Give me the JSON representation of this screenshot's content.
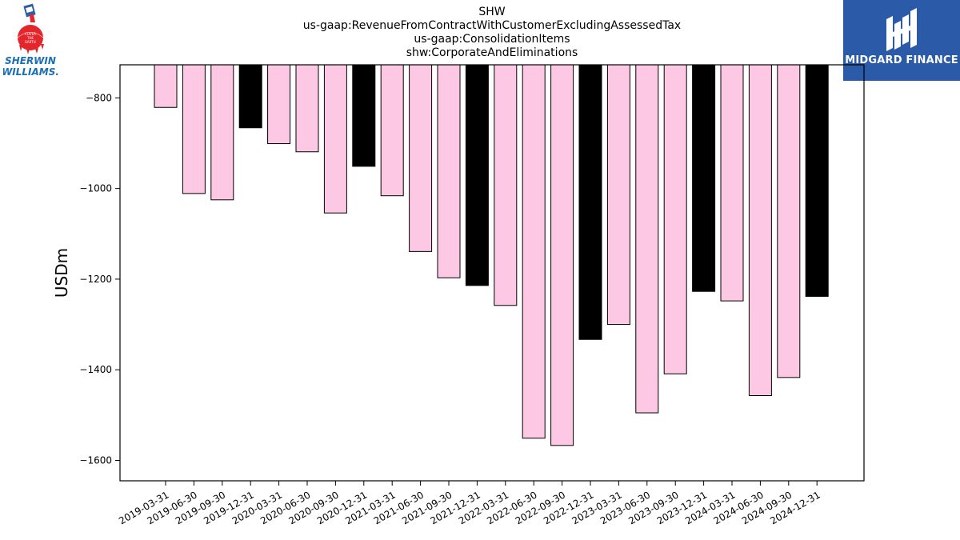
{
  "header": {
    "title_lines": [
      "SHW",
      "us-gaap:RevenueFromContractWithCustomerExcludingAssessedTax",
      "us-gaap:ConsolidationItems",
      "shw:CorporateAndEliminations"
    ]
  },
  "logos": {
    "left": {
      "name": "Sherwin-Williams",
      "wordmark_line1": "SHERWIN",
      "wordmark_line2": "WILLIAMS.",
      "globe_text": "COVER THE EARTH",
      "color": "#1a6fb5"
    },
    "right": {
      "name": "Midgard Finance",
      "wordmark": "MIDGARD FINANCE",
      "background": "#2a5aa8"
    }
  },
  "chart_data": {
    "type": "bar",
    "title": "SHW\nus-gaap:RevenueFromContractWithCustomerExcludingAssessedTax\nus-gaap:ConsolidationItems\nshw:CorporateAndEliminations",
    "xlabel": "",
    "ylabel": "USDm",
    "ylim": [
      -1645,
      -727
    ],
    "yticks": [
      -800,
      -1000,
      -1200,
      -1400,
      -1600
    ],
    "grid": false,
    "categories": [
      "2019-03-31",
      "2019-06-30",
      "2019-09-30",
      "2019-12-31",
      "2020-03-31",
      "2020-06-30",
      "2020-09-30",
      "2020-12-31",
      "2021-03-31",
      "2021-06-30",
      "2021-09-30",
      "2021-12-31",
      "2022-03-31",
      "2022-06-30",
      "2022-09-30",
      "2022-12-31",
      "2023-03-31",
      "2023-06-30",
      "2023-09-30",
      "2023-12-31",
      "2024-03-31",
      "2024-06-30",
      "2024-09-30",
      "2024-12-31"
    ],
    "values": [
      -821,
      -1011,
      -1025,
      -866,
      -901,
      -919,
      -1054,
      -951,
      -1016,
      -1139,
      -1197,
      -1214,
      -1258,
      -1551,
      -1567,
      -1333,
      -1300,
      -1495,
      -1409,
      -1227,
      -1248,
      -1457,
      -1417,
      -1238
    ],
    "colors": {
      "quarter": "#fcc8e4",
      "year_end": "#000000",
      "edge": "#000000"
    },
    "bar_colors": [
      "quarter",
      "quarter",
      "quarter",
      "year_end",
      "quarter",
      "quarter",
      "quarter",
      "year_end",
      "quarter",
      "quarter",
      "quarter",
      "year_end",
      "quarter",
      "quarter",
      "quarter",
      "year_end",
      "quarter",
      "quarter",
      "quarter",
      "year_end",
      "quarter",
      "quarter",
      "quarter",
      "year_end"
    ]
  }
}
